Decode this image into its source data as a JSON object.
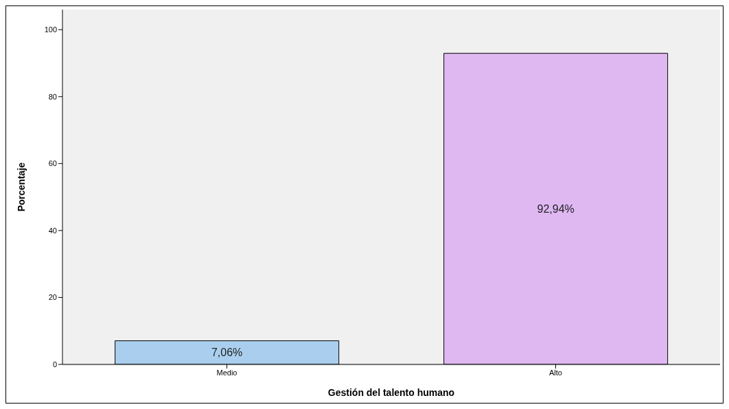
{
  "chart_data": {
    "type": "bar",
    "xlabel": "Gestión del talento humano",
    "ylabel": "Porcentaje",
    "categories": [
      "Medio",
      "Alto"
    ],
    "values": [
      7.06,
      92.94
    ],
    "colors": [
      "#aacfee",
      "#dfb8f2"
    ],
    "value_labels": [
      "7,06%",
      "92,94%"
    ],
    "ylim": [
      0,
      106
    ],
    "yticks": [
      0,
      20,
      40,
      60,
      80,
      100
    ],
    "grid": false
  }
}
